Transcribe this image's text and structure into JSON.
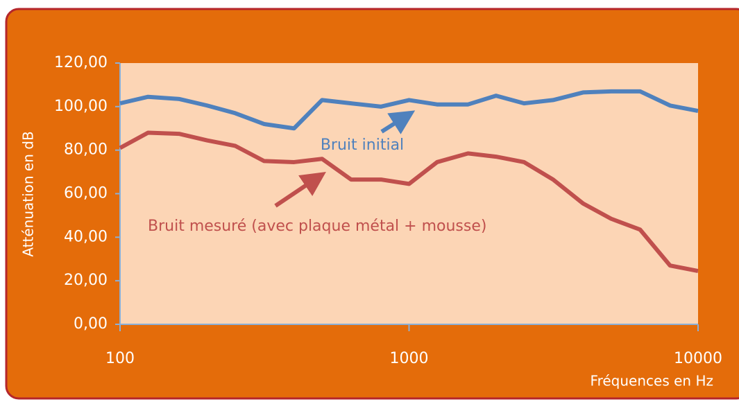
{
  "chart_data": {
    "type": "line",
    "log_x": true,
    "x_label": "Fréquences en Hz",
    "y_label": "Atténuation en dB",
    "x": [
      100,
      125,
      160,
      200,
      250,
      315,
      400,
      500,
      630,
      800,
      1000,
      1250,
      1600,
      2000,
      2500,
      3150,
      4000,
      5000,
      6300,
      8000,
      10000
    ],
    "series": [
      {
        "name": "Bruit initial",
        "color": "#4f81bd",
        "values": [
          101.5,
          104.5,
          103.5,
          100.5,
          97,
          92,
          90,
          103,
          101.5,
          100,
          103,
          101,
          101,
          105,
          101.5,
          103,
          106.5,
          107,
          107,
          100.5,
          98
        ]
      },
      {
        "name": "Bruit mesuré (avec plaque métal + mousse)",
        "color": "#c0504d",
        "values": [
          81,
          88,
          87.5,
          84.5,
          82,
          75,
          74.5,
          76,
          66.5,
          66.5,
          64.5,
          74.5,
          78.5,
          77,
          74.5,
          66.5,
          55.5,
          48.5,
          43.5,
          27,
          24.5
        ]
      }
    ],
    "xlim": [
      100,
      10000
    ],
    "xticks": [
      100,
      1000,
      10000
    ],
    "ylim": [
      0,
      120
    ],
    "yticks": [
      {
        "value": 0,
        "label": "0,00"
      },
      {
        "value": 20,
        "label": "20,00"
      },
      {
        "value": 40,
        "label": "40,00"
      },
      {
        "value": 60,
        "label": "60,00"
      },
      {
        "value": 80,
        "label": "80,00"
      },
      {
        "value": 100,
        "label": "100,00"
      },
      {
        "value": 120,
        "label": "120,00"
      }
    ]
  }
}
